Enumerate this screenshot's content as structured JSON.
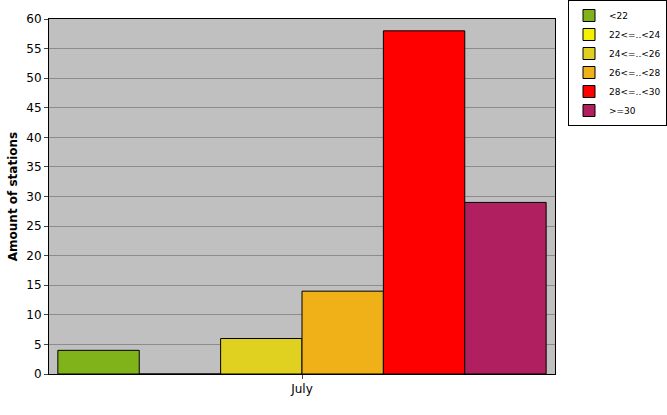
{
  "chart_data": {
    "type": "bar",
    "categories": [
      "July"
    ],
    "series": [
      {
        "name": "<22",
        "color": "#80b31a",
        "values": [
          4
        ]
      },
      {
        "name": "22<=..<24",
        "color": "#f5f000",
        "values": [
          0
        ]
      },
      {
        "name": "24<=..<26",
        "color": "#e0d020",
        "values": [
          6
        ]
      },
      {
        "name": "26<=..<28",
        "color": "#f0b018",
        "values": [
          14
        ]
      },
      {
        "name": "28<=..<30",
        "color": "#ff0000",
        "values": [
          58
        ]
      },
      {
        "name": ">=30",
        "color": "#b02060",
        "values": [
          29
        ]
      }
    ],
    "ylabel": "Amount of stations",
    "ylim": [
      0,
      60
    ],
    "yticks": [
      0,
      5,
      10,
      15,
      20,
      25,
      30,
      35,
      40,
      45,
      50,
      55,
      60
    ],
    "grid": true,
    "legend": "top right"
  }
}
